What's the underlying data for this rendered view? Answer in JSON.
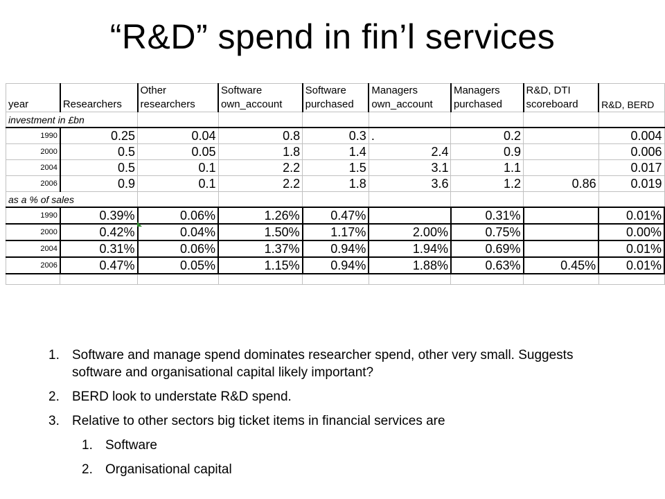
{
  "title": "“R&D” spend in fin’l services",
  "table": {
    "headers": [
      "year",
      "Researchers",
      "Other researchers",
      "Software own_account",
      "Software purchased",
      "Managers own_account",
      "Managers purchased",
      "R&D, DTI scoreboard",
      "R&D, BERD"
    ],
    "section1_label": "investment in £bn",
    "section1_rows": [
      [
        "1990",
        "0.25",
        "0.04",
        "0.8",
        "0.3",
        ".",
        "0.2",
        "",
        "0.004"
      ],
      [
        "2000",
        "0.5",
        "0.05",
        "1.8",
        "1.4",
        "2.4",
        "0.9",
        "",
        "0.006"
      ],
      [
        "2004",
        "0.5",
        "0.1",
        "2.2",
        "1.5",
        "3.1",
        "1.1",
        "",
        "0.017"
      ],
      [
        "2006",
        "0.9",
        "0.1",
        "2.2",
        "1.8",
        "3.6",
        "1.2",
        "0.86",
        "0.019"
      ]
    ],
    "section2_label": "as a % of sales",
    "section2_rows": [
      [
        "1990",
        "0.39%",
        "0.06%",
        "1.26%",
        "0.47%",
        "",
        "0.31%",
        "",
        "0.01%"
      ],
      [
        "2000",
        "0.42%",
        "0.04%",
        "1.50%",
        "1.17%",
        "2.00%",
        "0.75%",
        "",
        "0.00%"
      ],
      [
        "2004",
        "0.31%",
        "0.06%",
        "1.37%",
        "0.94%",
        "1.94%",
        "0.69%",
        "",
        "0.01%"
      ],
      [
        "2006",
        "0.47%",
        "0.05%",
        "1.15%",
        "0.94%",
        "1.88%",
        "0.63%",
        "0.45%",
        "0.01%"
      ]
    ]
  },
  "notes": [
    {
      "num": "1.",
      "text": "Software and manage spend dominates researcher spend, other very small.  Suggests software and organisational capital likely important?"
    },
    {
      "num": "2.",
      "text": "BERD look to understate R&D spend."
    },
    {
      "num": "3.",
      "text": "Relative to other sectors big ticket items in financial services are"
    }
  ],
  "subnotes": [
    {
      "num": "1.",
      "text": "Software"
    },
    {
      "num": "2.",
      "text": "Organisational capital"
    }
  ],
  "colors": {
    "marker": "#2e8b2e",
    "grid": "#c0c0c0"
  }
}
